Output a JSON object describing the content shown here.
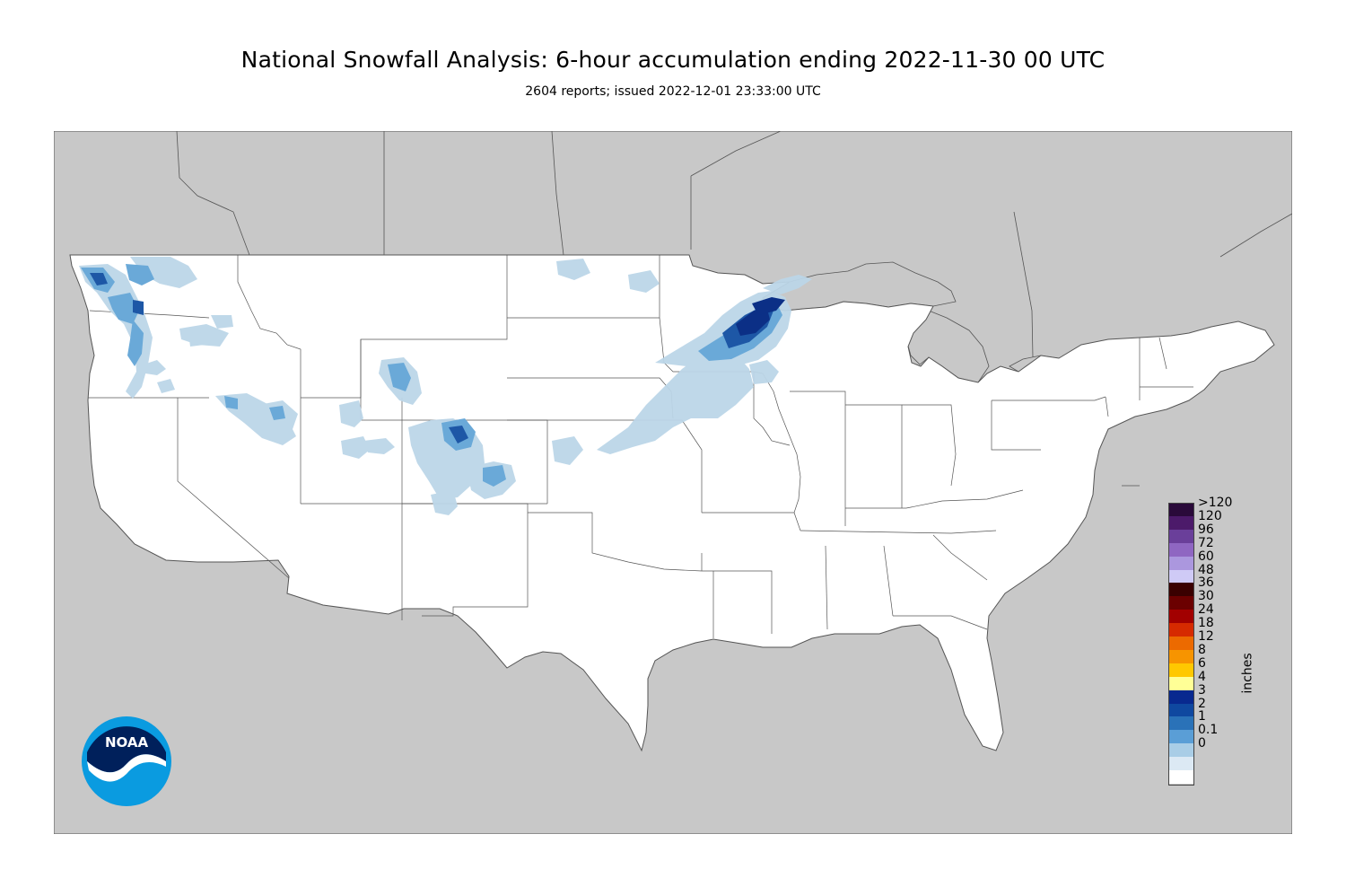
{
  "header": {
    "title": "National Snowfall Analysis: 6-hour accumulation ending 2022-11-30 00 UTC",
    "subtitle": "2604 reports; issued 2022-12-01 23:33:00 UTC"
  },
  "colors": {
    "land": "#ffffff",
    "outside": "#c8c8c8",
    "border": "#555555",
    "snow_light": "#bcd6e8",
    "snow_mid": "#6aa9d8",
    "snow_heavy": "#1d57a6",
    "snow_max": "#0b2f86"
  },
  "legend": {
    "units": "inches",
    "items": [
      {
        "label": ">120",
        "color": "#2a0a3a"
      },
      {
        "label": "120",
        "color": "#4c1a6a"
      },
      {
        "label": "96",
        "color": "#6a3f9a"
      },
      {
        "label": "72",
        "color": "#8f66c2"
      },
      {
        "label": "60",
        "color": "#ab97de"
      },
      {
        "label": "48",
        "color": "#cfcaf6"
      },
      {
        "label": "36",
        "color": "#3a0000"
      },
      {
        "label": "30",
        "color": "#6b0000"
      },
      {
        "label": "24",
        "color": "#a20000"
      },
      {
        "label": "18",
        "color": "#d62a00"
      },
      {
        "label": "12",
        "color": "#ec6a00"
      },
      {
        "label": "8",
        "color": "#f79400"
      },
      {
        "label": "6",
        "color": "#ffc800"
      },
      {
        "label": "4",
        "color": "#ffff96"
      },
      {
        "label": "3",
        "color": "#08298f"
      },
      {
        "label": "2",
        "color": "#0f48a0"
      },
      {
        "label": "1",
        "color": "#2a72b8"
      },
      {
        "label": "0.1",
        "color": "#5a9ed6"
      },
      {
        "label": "0",
        "color": "#a9cde6"
      },
      {
        "label": "",
        "color": "#dce9f4"
      },
      {
        "label": "",
        "color": "#ffffff"
      }
    ]
  },
  "logo": {
    "text": "NOAA"
  }
}
